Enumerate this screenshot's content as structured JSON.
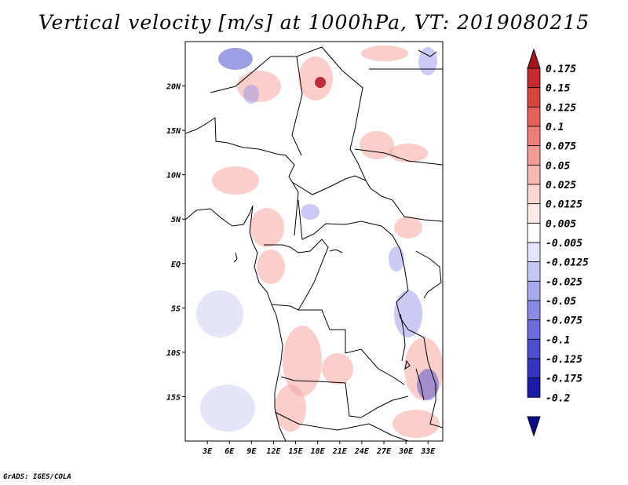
{
  "title": "Vertical velocity [m/s] at 1000hPa, VT: 2019080215",
  "credit": "GrADS: IGES/COLA",
  "map": {
    "lat_labels": [
      "20N",
      "15N",
      "10N",
      "5N",
      "EQ",
      "5S",
      "10S",
      "15S"
    ],
    "lat_values": [
      20,
      15,
      10,
      5,
      0,
      -5,
      -10,
      -15
    ],
    "lon_labels": [
      "3E",
      "6E",
      "9E",
      "12E",
      "15E",
      "18E",
      "21E",
      "24E",
      "27E",
      "30E",
      "33E"
    ],
    "lon_values": [
      3,
      6,
      9,
      12,
      15,
      18,
      21,
      24,
      27,
      30,
      33
    ],
    "lat_range": [
      -20,
      25
    ],
    "lon_range": [
      0,
      35
    ]
  },
  "colorbar": {
    "labels": [
      "0.175",
      "0.15",
      "0.125",
      "0.1",
      "0.075",
      "0.05",
      "0.025",
      "0.0125",
      "0.005",
      "-0.005",
      "-0.0125",
      "-0.025",
      "-0.05",
      "-0.075",
      "-0.1",
      "-0.125",
      "-0.175",
      "-0.2"
    ],
    "colors": [
      "#a8141c",
      "#c42a2e",
      "#d8443e",
      "#e8605a",
      "#f07e78",
      "#f59b95",
      "#f8b8b3",
      "#fbd6d2",
      "#fde9e7",
      "#ffffff",
      "#e3e3fb",
      "#c7c7f5",
      "#a9a9ee",
      "#8a8ae6",
      "#6c6cdc",
      "#4e4ed0",
      "#3434c0",
      "#1c1ca8",
      "#0a0a8c"
    ],
    "top_color": "#a8141c",
    "bottom_color": "#0a0a8c"
  }
}
